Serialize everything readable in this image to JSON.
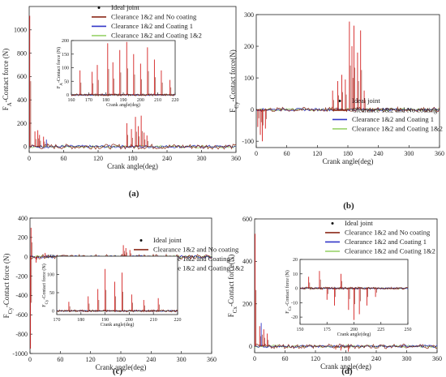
{
  "legend_labels": {
    "ideal": "Ideal joint",
    "nc": "Clearance 1&2 and No coating",
    "c1": "Clearance 1&2 and Coating 1",
    "c12": "Clearance 1&2 and Coating 1&2"
  },
  "colors": {
    "ideal": "#111111",
    "nc": "#8b2a1a",
    "c1": "#3236c8",
    "c12": "#9ad36b",
    "burst": "#d42020",
    "haze": "#f6c7cc"
  },
  "chart_data": [
    {
      "id": "a",
      "type": "line",
      "panel_label": "(a)",
      "xlabel": "Crank angle(deg)",
      "ylabel_prefix": "F",
      "ylabel_sub": "A",
      "ylabel_suffix": "-Contact force (N)",
      "xlim": [
        0,
        360
      ],
      "ylim": [
        -50,
        1200
      ],
      "xticks": [
        0,
        60,
        120,
        180,
        240,
        300,
        360
      ],
      "yticks": [
        0,
        200,
        400,
        600,
        800,
        1000
      ],
      "spikes": [
        {
          "x": 1,
          "y": 1120,
          "series": "nc"
        },
        {
          "x": 10,
          "y": 130,
          "series": "nc"
        },
        {
          "x": 15,
          "y": 140,
          "series": "nc"
        },
        {
          "x": 18,
          "y": 100,
          "series": "nc"
        },
        {
          "x": 25,
          "y": 85,
          "series": "nc"
        },
        {
          "x": 30,
          "y": 60,
          "series": "c1"
        },
        {
          "x": 170,
          "y": 200,
          "series": "nc"
        },
        {
          "x": 178,
          "y": 150,
          "series": "nc"
        },
        {
          "x": 185,
          "y": 255,
          "series": "nc"
        },
        {
          "x": 190,
          "y": 175,
          "series": "nc"
        },
        {
          "x": 195,
          "y": 265,
          "series": "nc"
        },
        {
          "x": 200,
          "y": 120,
          "series": "nc"
        },
        {
          "x": 205,
          "y": 95,
          "series": "nc"
        }
      ],
      "inset": {
        "xlabel": "Crank angle(deg)",
        "ylabel_prefix": "F",
        "ylabel_sub": "A",
        "ylabel_suffix": "-Contact force (N)",
        "xlim": [
          160,
          220
        ],
        "ylim": [
          0,
          200
        ],
        "xticks": [
          160,
          170,
          180,
          190,
          200,
          210,
          220
        ],
        "yticks": [
          0,
          50,
          100,
          150,
          200
        ],
        "spikes": [
          {
            "x": 165,
            "y": 90,
            "series": "nc"
          },
          {
            "x": 172,
            "y": 85,
            "series": "nc"
          },
          {
            "x": 175,
            "y": 110,
            "series": "nc"
          },
          {
            "x": 181,
            "y": 190,
            "series": "nc"
          },
          {
            "x": 184,
            "y": 120,
            "series": "nc"
          },
          {
            "x": 188,
            "y": 165,
            "series": "nc"
          },
          {
            "x": 192,
            "y": 195,
            "series": "nc"
          },
          {
            "x": 196,
            "y": 150,
            "series": "nc"
          },
          {
            "x": 200,
            "y": 115,
            "series": "nc"
          },
          {
            "x": 204,
            "y": 175,
            "series": "nc"
          },
          {
            "x": 208,
            "y": 130,
            "series": "nc"
          },
          {
            "x": 212,
            "y": 90,
            "series": "nc"
          },
          {
            "x": 217,
            "y": 55,
            "series": "nc"
          }
        ]
      }
    },
    {
      "id": "b",
      "type": "line",
      "panel_label": "(b)",
      "xlabel": "Crank angle(deg)",
      "ylabel_prefix": "F",
      "ylabel_sub": "Cy",
      "ylabel_suffix": "-Contact force(N)",
      "xlim": [
        0,
        360
      ],
      "ylim": [
        -120,
        300
      ],
      "xticks": [
        0,
        60,
        120,
        180,
        240,
        300,
        360
      ],
      "yticks": [
        -100,
        0,
        100,
        200,
        300
      ],
      "spikes": [
        {
          "x": 3,
          "y": -55,
          "series": "nc"
        },
        {
          "x": 8,
          "y": -80,
          "series": "nc"
        },
        {
          "x": 12,
          "y": -100,
          "series": "nc"
        },
        {
          "x": 18,
          "y": -60,
          "series": "nc"
        },
        {
          "x": 150,
          "y": 60,
          "series": "nc"
        },
        {
          "x": 160,
          "y": 90,
          "series": "nc"
        },
        {
          "x": 168,
          "y": 110,
          "series": "nc"
        },
        {
          "x": 175,
          "y": 95,
          "series": "nc"
        },
        {
          "x": 183,
          "y": 278,
          "series": "nc"
        },
        {
          "x": 188,
          "y": 200,
          "series": "nc"
        },
        {
          "x": 192,
          "y": 265,
          "series": "nc"
        },
        {
          "x": 199,
          "y": 180,
          "series": "nc"
        },
        {
          "x": 205,
          "y": 250,
          "series": "nc"
        },
        {
          "x": 212,
          "y": 60,
          "series": "nc"
        }
      ]
    },
    {
      "id": "c",
      "type": "line",
      "panel_label": "(c)",
      "xlabel": "Crank angle(deg)",
      "ylabel_prefix": "F",
      "ylabel_sub": "Cy",
      "ylabel_suffix": "-Contact force (N)",
      "xlim": [
        0,
        360
      ],
      "ylim": [
        -1000,
        400
      ],
      "xticks": [
        0,
        60,
        120,
        180,
        240,
        300,
        360
      ],
      "yticks": [
        -1000,
        -800,
        -600,
        -400,
        -200,
        0,
        200,
        400
      ],
      "spikes": [
        {
          "x": 1,
          "y": -950,
          "series": "nc"
        },
        {
          "x": 2,
          "y": 300,
          "series": "nc"
        },
        {
          "x": 12,
          "y": -60,
          "series": "nc"
        },
        {
          "x": 30,
          "y": 40,
          "series": "nc"
        },
        {
          "x": 185,
          "y": 120,
          "series": "nc"
        },
        {
          "x": 190,
          "y": 90,
          "series": "nc"
        },
        {
          "x": 198,
          "y": 70,
          "series": "nc"
        }
      ],
      "inset": {
        "xlabel": "Crank angle(deg)",
        "ylabel_prefix": "F",
        "ylabel_sub": "Cy",
        "ylabel_suffix": "-Contact force (N)",
        "xlim": [
          170,
          220
        ],
        "ylim": [
          -10,
          150
        ],
        "xticks": [
          170,
          180,
          190,
          200,
          210,
          220
        ],
        "yticks": [
          0,
          50,
          100,
          150
        ],
        "spikes": [
          {
            "x": 175,
            "y": 25,
            "series": "nc"
          },
          {
            "x": 183,
            "y": 40,
            "series": "nc"
          },
          {
            "x": 187,
            "y": 60,
            "series": "nc"
          },
          {
            "x": 190,
            "y": 115,
            "series": "nc"
          },
          {
            "x": 194,
            "y": 80,
            "series": "nc"
          },
          {
            "x": 197,
            "y": 105,
            "series": "nc"
          },
          {
            "x": 201,
            "y": 45,
            "series": "nc"
          },
          {
            "x": 206,
            "y": 30,
            "series": "nc"
          },
          {
            "x": 212,
            "y": 35,
            "series": "nc"
          }
        ]
      }
    },
    {
      "id": "d",
      "type": "line",
      "panel_label": "(d)",
      "xlabel": "Crank angle(deg)",
      "ylabel_prefix": "F",
      "ylabel_sub": "Cx",
      "ylabel_suffix": "-Contact force(N)",
      "xlim": [
        0,
        360
      ],
      "ylim": [
        -30,
        600
      ],
      "xticks": [
        0,
        60,
        120,
        180,
        240,
        300,
        360
      ],
      "yticks": [
        0,
        200,
        400,
        600
      ],
      "spikes": [
        {
          "x": 1,
          "y": 530,
          "series": "nc"
        },
        {
          "x": 10,
          "y": 95,
          "series": "nc"
        },
        {
          "x": 13,
          "y": 110,
          "series": "c1"
        },
        {
          "x": 18,
          "y": 80,
          "series": "nc"
        },
        {
          "x": 25,
          "y": 60,
          "series": "nc"
        },
        {
          "x": 160,
          "y": -15,
          "series": "nc"
        },
        {
          "x": 170,
          "y": -20,
          "series": "nc"
        },
        {
          "x": 185,
          "y": -25,
          "series": "nc"
        }
      ],
      "inset": {
        "xlabel": "Crank angle(deg)",
        "ylabel_prefix": "F",
        "ylabel_sub": "Cx",
        "ylabel_suffix": "-Contact force (N)",
        "xlim": [
          150,
          250
        ],
        "ylim": [
          -25,
          20
        ],
        "xticks": [
          150,
          175,
          200,
          225,
          250
        ],
        "yticks": [
          -20,
          -10,
          0,
          10,
          20
        ],
        "spikes": [
          {
            "x": 158,
            "y": 8,
            "series": "nc"
          },
          {
            "x": 168,
            "y": 12,
            "series": "nc"
          },
          {
            "x": 175,
            "y": -8,
            "series": "nc"
          },
          {
            "x": 182,
            "y": -12,
            "series": "nc"
          },
          {
            "x": 188,
            "y": 10,
            "series": "nc"
          },
          {
            "x": 195,
            "y": -15,
            "series": "nc"
          },
          {
            "x": 200,
            "y": -22,
            "series": "nc"
          },
          {
            "x": 205,
            "y": -18,
            "series": "nc"
          },
          {
            "x": 212,
            "y": -12,
            "series": "nc"
          },
          {
            "x": 220,
            "y": -6,
            "series": "nc"
          }
        ]
      }
    }
  ]
}
